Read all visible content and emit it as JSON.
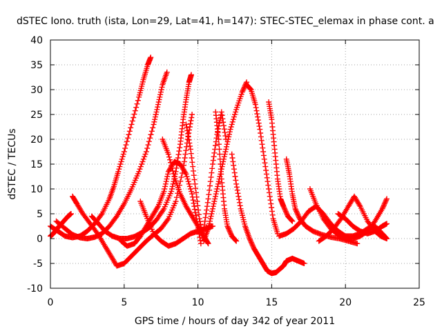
{
  "chart_data": {
    "type": "scatter",
    "title": "dSTEC Iono. truth (ista, Lon=29, Lat=41, h=147): STEC-STEC_elemax in phase cont. a",
    "xlabel": "GPS time / hours of day 342 of year 2011",
    "ylabel": "dSTEC  / TECUs",
    "xlim": [
      0,
      25
    ],
    "ylim": [
      -10,
      40
    ],
    "xticks": [
      0,
      5,
      10,
      15,
      20,
      25
    ],
    "yticks": [
      -10,
      -5,
      0,
      5,
      10,
      15,
      20,
      25,
      30,
      35,
      40
    ],
    "grid": true,
    "marker": "+",
    "series_color": "#ff0000",
    "series": [
      {
        "x": [
          0.0,
          0.5,
          1.0,
          1.5,
          2.0,
          2.5,
          3.0,
          3.5,
          4.0,
          4.3,
          4.6,
          5.0,
          5.5,
          6.0,
          6.3,
          6.6,
          6.8
        ],
        "values": [
          2.5,
          1.5,
          0.5,
          0.2,
          0.5,
          1.5,
          3.0,
          5.0,
          8.0,
          10.5,
          13.5,
          17.5,
          23.0,
          28.5,
          32.0,
          35.0,
          36.5
        ]
      },
      {
        "x": [
          0.4,
          1.0,
          1.5,
          2.0,
          2.5,
          3.0,
          3.5,
          4.0,
          4.5,
          5.0,
          5.5,
          6.0,
          6.5,
          7.0,
          7.3,
          7.6,
          7.9
        ],
        "values": [
          3.5,
          2.0,
          0.8,
          0.2,
          0.0,
          0.3,
          1.0,
          2.5,
          4.5,
          7.0,
          10.0,
          13.5,
          17.5,
          23.0,
          27.0,
          31.0,
          33.5
        ]
      },
      {
        "x": [
          0.0,
          0.2,
          0.4,
          0.6,
          0.9,
          1.2,
          1.4
        ],
        "values": [
          0.5,
          1.0,
          1.8,
          2.5,
          3.5,
          4.5,
          5.0
        ]
      },
      {
        "x": [
          1.5,
          1.8,
          2.2,
          2.7,
          3.2,
          3.7,
          4.1,
          4.5,
          5.0,
          5.5,
          6.0,
          6.5,
          7.0,
          7.5,
          8.0,
          8.5,
          9.0,
          9.3,
          9.6
        ],
        "values": [
          8.5,
          7.0,
          5.0,
          3.0,
          1.0,
          -1.5,
          -3.5,
          -5.5,
          -5.0,
          -3.5,
          -2.0,
          -0.5,
          0.8,
          2.0,
          4.0,
          7.5,
          14.0,
          20.0,
          25.0
        ]
      },
      {
        "x": [
          2.8,
          3.2,
          3.7,
          4.2,
          4.7,
          5.2,
          5.7,
          6.2,
          6.7,
          7.2,
          7.7,
          8.2,
          8.5,
          8.8,
          9.0,
          9.2,
          9.4,
          9.55
        ],
        "values": [
          4.5,
          3.2,
          1.5,
          0.5,
          0.0,
          0.0,
          0.4,
          1.2,
          2.2,
          3.8,
          6.0,
          9.5,
          13.5,
          19.0,
          24.0,
          28.0,
          31.5,
          33.0
        ]
      },
      {
        "x": [
          4.8,
          5.2,
          5.7,
          6.1,
          6.5,
          6.9,
          7.3,
          7.7,
          8.0,
          8.4,
          8.8,
          9.2,
          9.6,
          9.9,
          10.2
        ],
        "values": [
          -0.5,
          -1.5,
          -1.0,
          0.5,
          2.5,
          4.5,
          6.5,
          9.5,
          13.5,
          15.5,
          15.0,
          13.0,
          9.0,
          4.0,
          -1.0
        ]
      },
      {
        "x": [
          6.1,
          6.5,
          7.0,
          7.5,
          8.0,
          8.5,
          9.0,
          9.5,
          10.0,
          10.5,
          11.0
        ],
        "values": [
          7.5,
          4.5,
          1.0,
          -0.5,
          -1.5,
          -1.0,
          0.0,
          1.0,
          1.5,
          2.0,
          2.5
        ]
      },
      {
        "x": [
          7.6,
          8.0,
          8.4,
          8.8,
          9.2,
          9.6,
          10.0,
          10.4,
          10.7
        ],
        "values": [
          20.0,
          17.0,
          12.5,
          9.0,
          6.5,
          4.5,
          2.5,
          0.5,
          -1.0
        ]
      },
      {
        "x": [
          9.2,
          9.5,
          9.8,
          10.1,
          10.4,
          10.7,
          11.0,
          11.3,
          11.6,
          11.9,
          12.2,
          12.6,
          13.0,
          13.3
        ],
        "values": [
          23.0,
          18.0,
          11.0,
          4.0,
          -0.5,
          2.0,
          6.0,
          10.0,
          14.0,
          18.0,
          22.0,
          26.0,
          29.5,
          31.5
        ]
      },
      {
        "x": [
          10.4,
          10.7,
          11.0,
          11.3,
          11.6,
          11.9
        ],
        "values": [
          2.0,
          8.0,
          15.0,
          21.0,
          25.5,
          20.0
        ]
      },
      {
        "x": [
          11.2,
          11.4,
          11.6,
          11.8,
          12.0,
          12.3,
          12.6
        ],
        "values": [
          25.5,
          20.0,
          12.0,
          6.0,
          2.5,
          0.5,
          -0.5
        ]
      },
      {
        "x": [
          12.3,
          12.6,
          12.9,
          13.2,
          13.5,
          13.8,
          14.1,
          14.4,
          14.7,
          15.0,
          15.3,
          15.6,
          15.8,
          16.0,
          16.4,
          16.8,
          17.2
        ],
        "values": [
          17.0,
          11.0,
          6.0,
          2.5,
          0.0,
          -2.0,
          -3.5,
          -5.0,
          -6.5,
          -7.0,
          -6.8,
          -6.0,
          -5.5,
          -4.5,
          -4.0,
          -4.5,
          -5.0
        ]
      },
      {
        "x": [
          13.3,
          13.6,
          13.9,
          14.2,
          14.5,
          14.8,
          15.1,
          15.4
        ],
        "values": [
          31.0,
          30.0,
          27.0,
          22.0,
          16.0,
          10.0,
          4.0,
          1.0
        ]
      },
      {
        "x": [
          14.8,
          15.0,
          15.2,
          15.4,
          15.6,
          15.8,
          16.1,
          16.4
        ],
        "values": [
          27.5,
          24.0,
          18.0,
          12.0,
          8.0,
          6.5,
          4.5,
          3.5
        ]
      },
      {
        "x": [
          16.0,
          16.2,
          16.4,
          16.6,
          16.9,
          17.3,
          17.8,
          18.4,
          19.0,
          19.6,
          20.2,
          20.8
        ],
        "values": [
          16.0,
          13.0,
          9.0,
          6.0,
          4.0,
          2.5,
          1.5,
          0.8,
          0.3,
          0.0,
          -0.5,
          -1.0
        ]
      },
      {
        "x": [
          17.6,
          18.0,
          18.5,
          19.0,
          19.5,
          20.0,
          20.5,
          21.0,
          21.5,
          22.0,
          22.5,
          22.8
        ],
        "values": [
          10.0,
          7.0,
          4.0,
          2.0,
          0.8,
          0.2,
          0.0,
          0.5,
          1.5,
          3.5,
          6.0,
          8.0
        ]
      },
      {
        "x": [
          15.5,
          16.0,
          16.5,
          17.0,
          17.5,
          18.0,
          18.5,
          19.0,
          19.5,
          20.0,
          20.5,
          21.0,
          21.5,
          22.0,
          22.5,
          22.8
        ],
        "values": [
          0.5,
          1.0,
          2.0,
          3.5,
          5.5,
          6.5,
          5.0,
          3.0,
          1.5,
          0.5,
          0.5,
          1.0,
          2.0,
          2.5,
          1.0,
          0.0
        ]
      },
      {
        "x": [
          18.2,
          18.7,
          19.2,
          19.7,
          20.2,
          20.6,
          21.0,
          21.5,
          22.0,
          22.4,
          22.8
        ],
        "values": [
          -0.5,
          0.5,
          2.0,
          4.0,
          6.5,
          8.5,
          6.5,
          3.5,
          1.5,
          0.5,
          0.0
        ]
      },
      {
        "x": [
          19.5,
          20.0,
          20.5,
          21.0,
          21.5,
          22.0,
          22.5,
          22.8
        ],
        "values": [
          5.0,
          4.0,
          2.5,
          1.5,
          1.0,
          1.5,
          2.5,
          3.0
        ]
      }
    ]
  }
}
